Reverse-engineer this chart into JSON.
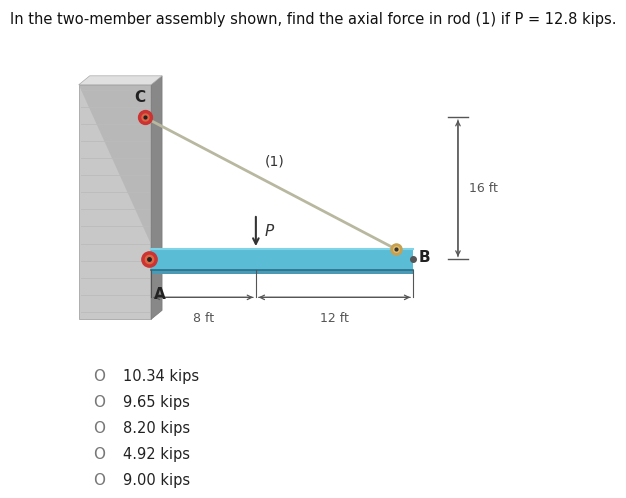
{
  "title": "In the two-member assembly shown, find the axial force in rod (1) if P = 12.8 kips.",
  "title_fontsize": 10.5,
  "background_color": "#ffffff",
  "choices": [
    "10.34 kips",
    "9.65 kips",
    "8.20 kips",
    "4.92 kips",
    "9.00 kips"
  ],
  "wall_face_color": "#c8c8c8",
  "wall_side_color": "#888888",
  "wall_top_color": "#e0e0e0",
  "beam_color": "#5bbcd6",
  "beam_top_color": "#80d4e8",
  "beam_bottom_color": "#3a8fa8",
  "rod_color": "#b8b8a0",
  "pin_outer_color": "#cc3333",
  "pin_inner_color": "#dd6644",
  "bolt_outer_color": "#c8a050",
  "bolt_inner_color": "#e0c070",
  "dim_color": "#555555",
  "arrow_color": "#333333",
  "label_color": "#222222"
}
